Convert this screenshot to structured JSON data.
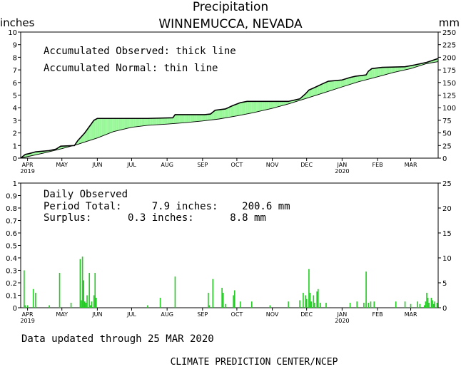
{
  "header": {
    "title": "Precipitation",
    "subtitle": "WINNEMUCCA, NEVADA",
    "left_unit": "inches",
    "right_unit": "mm"
  },
  "top_panel": {
    "legend_line1": "Accumulated Observed: thick line",
    "legend_line2": "Accumulated Normal: thin line"
  },
  "bottom_panel": {
    "line1": "Daily Observed",
    "line2": "Period Total:     7.9 inches:    200.6 mm",
    "line3": "Surplus:      0.3 inches:      8.8 mm"
  },
  "footer": {
    "updated": "Data updated through 25 MAR 2020",
    "credit": "CLIMATE PREDICTION CENTER/NCEP"
  },
  "colors": {
    "surplus_fill": "#98f898",
    "deficit_fill": "#b09088",
    "bar": "#22cc22",
    "line": "#000000"
  },
  "chart_data": [
    {
      "type": "area",
      "title": "Accumulated precipitation",
      "x_unit": "day",
      "xlim": [
        "2019-03-26",
        "2020-03-25"
      ],
      "month_ticks": [
        {
          "label": "APR",
          "date": "2019-04-01",
          "year": "2019"
        },
        {
          "label": "MAY",
          "date": "2019-05-01"
        },
        {
          "label": "JUN",
          "date": "2019-06-01"
        },
        {
          "label": "JUL",
          "date": "2019-07-01"
        },
        {
          "label": "AUG",
          "date": "2019-08-01"
        },
        {
          "label": "SEP",
          "date": "2019-09-01"
        },
        {
          "label": "OCT",
          "date": "2019-10-01"
        },
        {
          "label": "NOV",
          "date": "2019-11-01"
        },
        {
          "label": "DEC",
          "date": "2019-12-01"
        },
        {
          "label": "JAN",
          "date": "2020-01-01",
          "year": "2020"
        },
        {
          "label": "FEB",
          "date": "2020-02-01"
        },
        {
          "label": "MAR",
          "date": "2020-03-01"
        }
      ],
      "ylim": [
        0,
        10
      ],
      "y_ticks": [
        0,
        1,
        2,
        3,
        4,
        5,
        6,
        7,
        8,
        9,
        10
      ],
      "y2lim": [
        0,
        250
      ],
      "y2_ticks": [
        0,
        25,
        50,
        75,
        100,
        125,
        150,
        175,
        200,
        225,
        250
      ],
      "series": [
        {
          "name": "Accumulated Observed",
          "style": "thick",
          "points": [
            [
              "2019-03-26",
              0.0
            ],
            [
              "2019-03-30",
              0.3
            ],
            [
              "2019-04-02",
              0.35
            ],
            [
              "2019-04-08",
              0.5
            ],
            [
              "2019-04-20",
              0.6
            ],
            [
              "2019-04-26",
              0.72
            ],
            [
              "2019-04-30",
              0.95
            ],
            [
              "2019-05-12",
              1.0
            ],
            [
              "2019-05-15",
              1.4
            ],
            [
              "2019-05-21",
              2.0
            ],
            [
              "2019-05-25",
              2.5
            ],
            [
              "2019-05-29",
              3.0
            ],
            [
              "2019-06-01",
              3.15
            ],
            [
              "2019-07-15",
              3.15
            ],
            [
              "2019-08-06",
              3.2
            ],
            [
              "2019-08-08",
              3.45
            ],
            [
              "2019-09-03",
              3.45
            ],
            [
              "2019-09-08",
              3.5
            ],
            [
              "2019-09-12",
              3.8
            ],
            [
              "2019-09-21",
              3.9
            ],
            [
              "2019-09-27",
              4.15
            ],
            [
              "2019-10-04",
              4.4
            ],
            [
              "2019-10-10",
              4.5
            ],
            [
              "2019-11-15",
              4.5
            ],
            [
              "2019-11-25",
              4.7
            ],
            [
              "2019-11-30",
              5.1
            ],
            [
              "2019-12-03",
              5.4
            ],
            [
              "2019-12-08",
              5.6
            ],
            [
              "2019-12-15",
              5.9
            ],
            [
              "2019-12-20",
              6.1
            ],
            [
              "2020-01-01",
              6.2
            ],
            [
              "2020-01-08",
              6.4
            ],
            [
              "2020-01-13",
              6.5
            ],
            [
              "2020-01-22",
              6.6
            ],
            [
              "2020-01-24",
              6.9
            ],
            [
              "2020-01-27",
              7.1
            ],
            [
              "2020-02-05",
              7.2
            ],
            [
              "2020-02-25",
              7.25
            ],
            [
              "2020-03-05",
              7.4
            ],
            [
              "2020-03-15",
              7.6
            ],
            [
              "2020-03-25",
              7.9
            ]
          ]
        },
        {
          "name": "Accumulated Normal",
          "style": "thin",
          "points": [
            [
              "2019-03-26",
              0.0
            ],
            [
              "2019-04-15",
              0.4
            ],
            [
              "2019-05-01",
              0.75
            ],
            [
              "2019-05-15",
              1.1
            ],
            [
              "2019-06-01",
              1.6
            ],
            [
              "2019-06-15",
              2.1
            ],
            [
              "2019-07-01",
              2.45
            ],
            [
              "2019-07-15",
              2.6
            ],
            [
              "2019-08-01",
              2.7
            ],
            [
              "2019-08-15",
              2.8
            ],
            [
              "2019-09-01",
              2.95
            ],
            [
              "2019-09-15",
              3.1
            ],
            [
              "2019-10-01",
              3.35
            ],
            [
              "2019-10-15",
              3.6
            ],
            [
              "2019-11-01",
              3.95
            ],
            [
              "2019-11-15",
              4.3
            ],
            [
              "2019-12-01",
              4.75
            ],
            [
              "2019-12-15",
              5.15
            ],
            [
              "2020-01-01",
              5.65
            ],
            [
              "2020-01-15",
              6.05
            ],
            [
              "2020-02-01",
              6.45
            ],
            [
              "2020-02-15",
              6.8
            ],
            [
              "2020-03-01",
              7.1
            ],
            [
              "2020-03-15",
              7.5
            ],
            [
              "2020-03-25",
              7.65
            ]
          ]
        }
      ]
    },
    {
      "type": "bar",
      "title": "Daily Observed",
      "ylim": [
        0,
        1
      ],
      "y_ticks": [
        0,
        0.1,
        0.2,
        0.3,
        0.4,
        0.5,
        0.6,
        0.7,
        0.8,
        0.9,
        1
      ],
      "y2lim": [
        0,
        25
      ],
      "y2_ticks": [
        0,
        5,
        10,
        15,
        20,
        25
      ],
      "values": [
        [
          "2019-03-29",
          0.3
        ],
        [
          "2019-03-30",
          0.02
        ],
        [
          "2019-04-01",
          0.02
        ],
        [
          "2019-04-06",
          0.15
        ],
        [
          "2019-04-08",
          0.12
        ],
        [
          "2019-04-20",
          0.02
        ],
        [
          "2019-04-29",
          0.28
        ],
        [
          "2019-05-09",
          0.04
        ],
        [
          "2019-05-17",
          0.39
        ],
        [
          "2019-05-18",
          0.06
        ],
        [
          "2019-05-19",
          0.41
        ],
        [
          "2019-05-20",
          0.22
        ],
        [
          "2019-05-21",
          0.05
        ],
        [
          "2019-05-22",
          0.04
        ],
        [
          "2019-05-23",
          0.1
        ],
        [
          "2019-05-25",
          0.28
        ],
        [
          "2019-05-26",
          0.02
        ],
        [
          "2019-05-27",
          0.05
        ],
        [
          "2019-05-29",
          0.1
        ],
        [
          "2019-05-30",
          0.28
        ],
        [
          "2019-05-31",
          0.08
        ],
        [
          "2019-07-15",
          0.02
        ],
        [
          "2019-07-26",
          0.08
        ],
        [
          "2019-08-08",
          0.25
        ],
        [
          "2019-09-06",
          0.12
        ],
        [
          "2019-09-07",
          0.02
        ],
        [
          "2019-09-10",
          0.23
        ],
        [
          "2019-09-18",
          0.16
        ],
        [
          "2019-09-19",
          0.12
        ],
        [
          "2019-09-21",
          0.03
        ],
        [
          "2019-09-28",
          0.1
        ],
        [
          "2019-09-29",
          0.14
        ],
        [
          "2019-10-04",
          0.05
        ],
        [
          "2019-10-14",
          0.05
        ],
        [
          "2019-10-30",
          0.02
        ],
        [
          "2019-11-15",
          0.05
        ],
        [
          "2019-11-25",
          0.06
        ],
        [
          "2019-11-28",
          0.12
        ],
        [
          "2019-11-30",
          0.1
        ],
        [
          "2019-12-01",
          0.07
        ],
        [
          "2019-12-03",
          0.31
        ],
        [
          "2019-12-04",
          0.12
        ],
        [
          "2019-12-05",
          0.05
        ],
        [
          "2019-12-07",
          0.1
        ],
        [
          "2019-12-08",
          0.04
        ],
        [
          "2019-12-10",
          0.13
        ],
        [
          "2019-12-11",
          0.15
        ],
        [
          "2019-12-13",
          0.04
        ],
        [
          "2019-12-18",
          0.04
        ],
        [
          "2020-01-08",
          0.04
        ],
        [
          "2020-01-14",
          0.05
        ],
        [
          "2020-01-20",
          0.04
        ],
        [
          "2020-01-22",
          0.29
        ],
        [
          "2020-01-24",
          0.04
        ],
        [
          "2020-01-26",
          0.05
        ],
        [
          "2020-01-29",
          0.05
        ],
        [
          "2020-02-17",
          0.05
        ],
        [
          "2020-02-25",
          0.05
        ],
        [
          "2020-03-01",
          0.03
        ],
        [
          "2020-03-07",
          0.05
        ],
        [
          "2020-03-09",
          0.03
        ],
        [
          "2020-03-13",
          0.02
        ],
        [
          "2020-03-14",
          0.05
        ],
        [
          "2020-03-15",
          0.12
        ],
        [
          "2020-03-16",
          0.08
        ],
        [
          "2020-03-17",
          0.04
        ],
        [
          "2020-03-19",
          0.08
        ],
        [
          "2020-03-20",
          0.06
        ],
        [
          "2020-03-21",
          0.03
        ],
        [
          "2020-03-22",
          0.05
        ],
        [
          "2020-03-24",
          0.04
        ]
      ]
    }
  ]
}
